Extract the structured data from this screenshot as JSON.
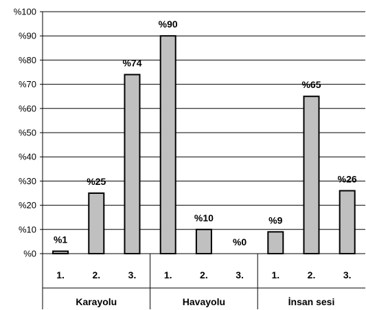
{
  "chart_data": {
    "type": "bar",
    "ylim": [
      0,
      100
    ],
    "ytick_step": 10,
    "ytick_prefix": "%",
    "grid": true,
    "bar_color": "#c0c0c0",
    "groups": [
      {
        "label": "Karayolu",
        "categories": [
          "1.",
          "2.",
          "3."
        ],
        "values": [
          1,
          25,
          74
        ]
      },
      {
        "label": "Havayolu",
        "categories": [
          "1.",
          "2.",
          "3."
        ],
        "values": [
          90,
          10,
          0
        ]
      },
      {
        "label": "İnsan sesi",
        "categories": [
          "1.",
          "2.",
          "3."
        ],
        "values": [
          9,
          65,
          26
        ]
      }
    ],
    "data_labels": [
      [
        "%1",
        "%25",
        "%74"
      ],
      [
        "%90",
        "%10",
        "%0"
      ],
      [
        "%9",
        "%65",
        "%26"
      ]
    ]
  }
}
